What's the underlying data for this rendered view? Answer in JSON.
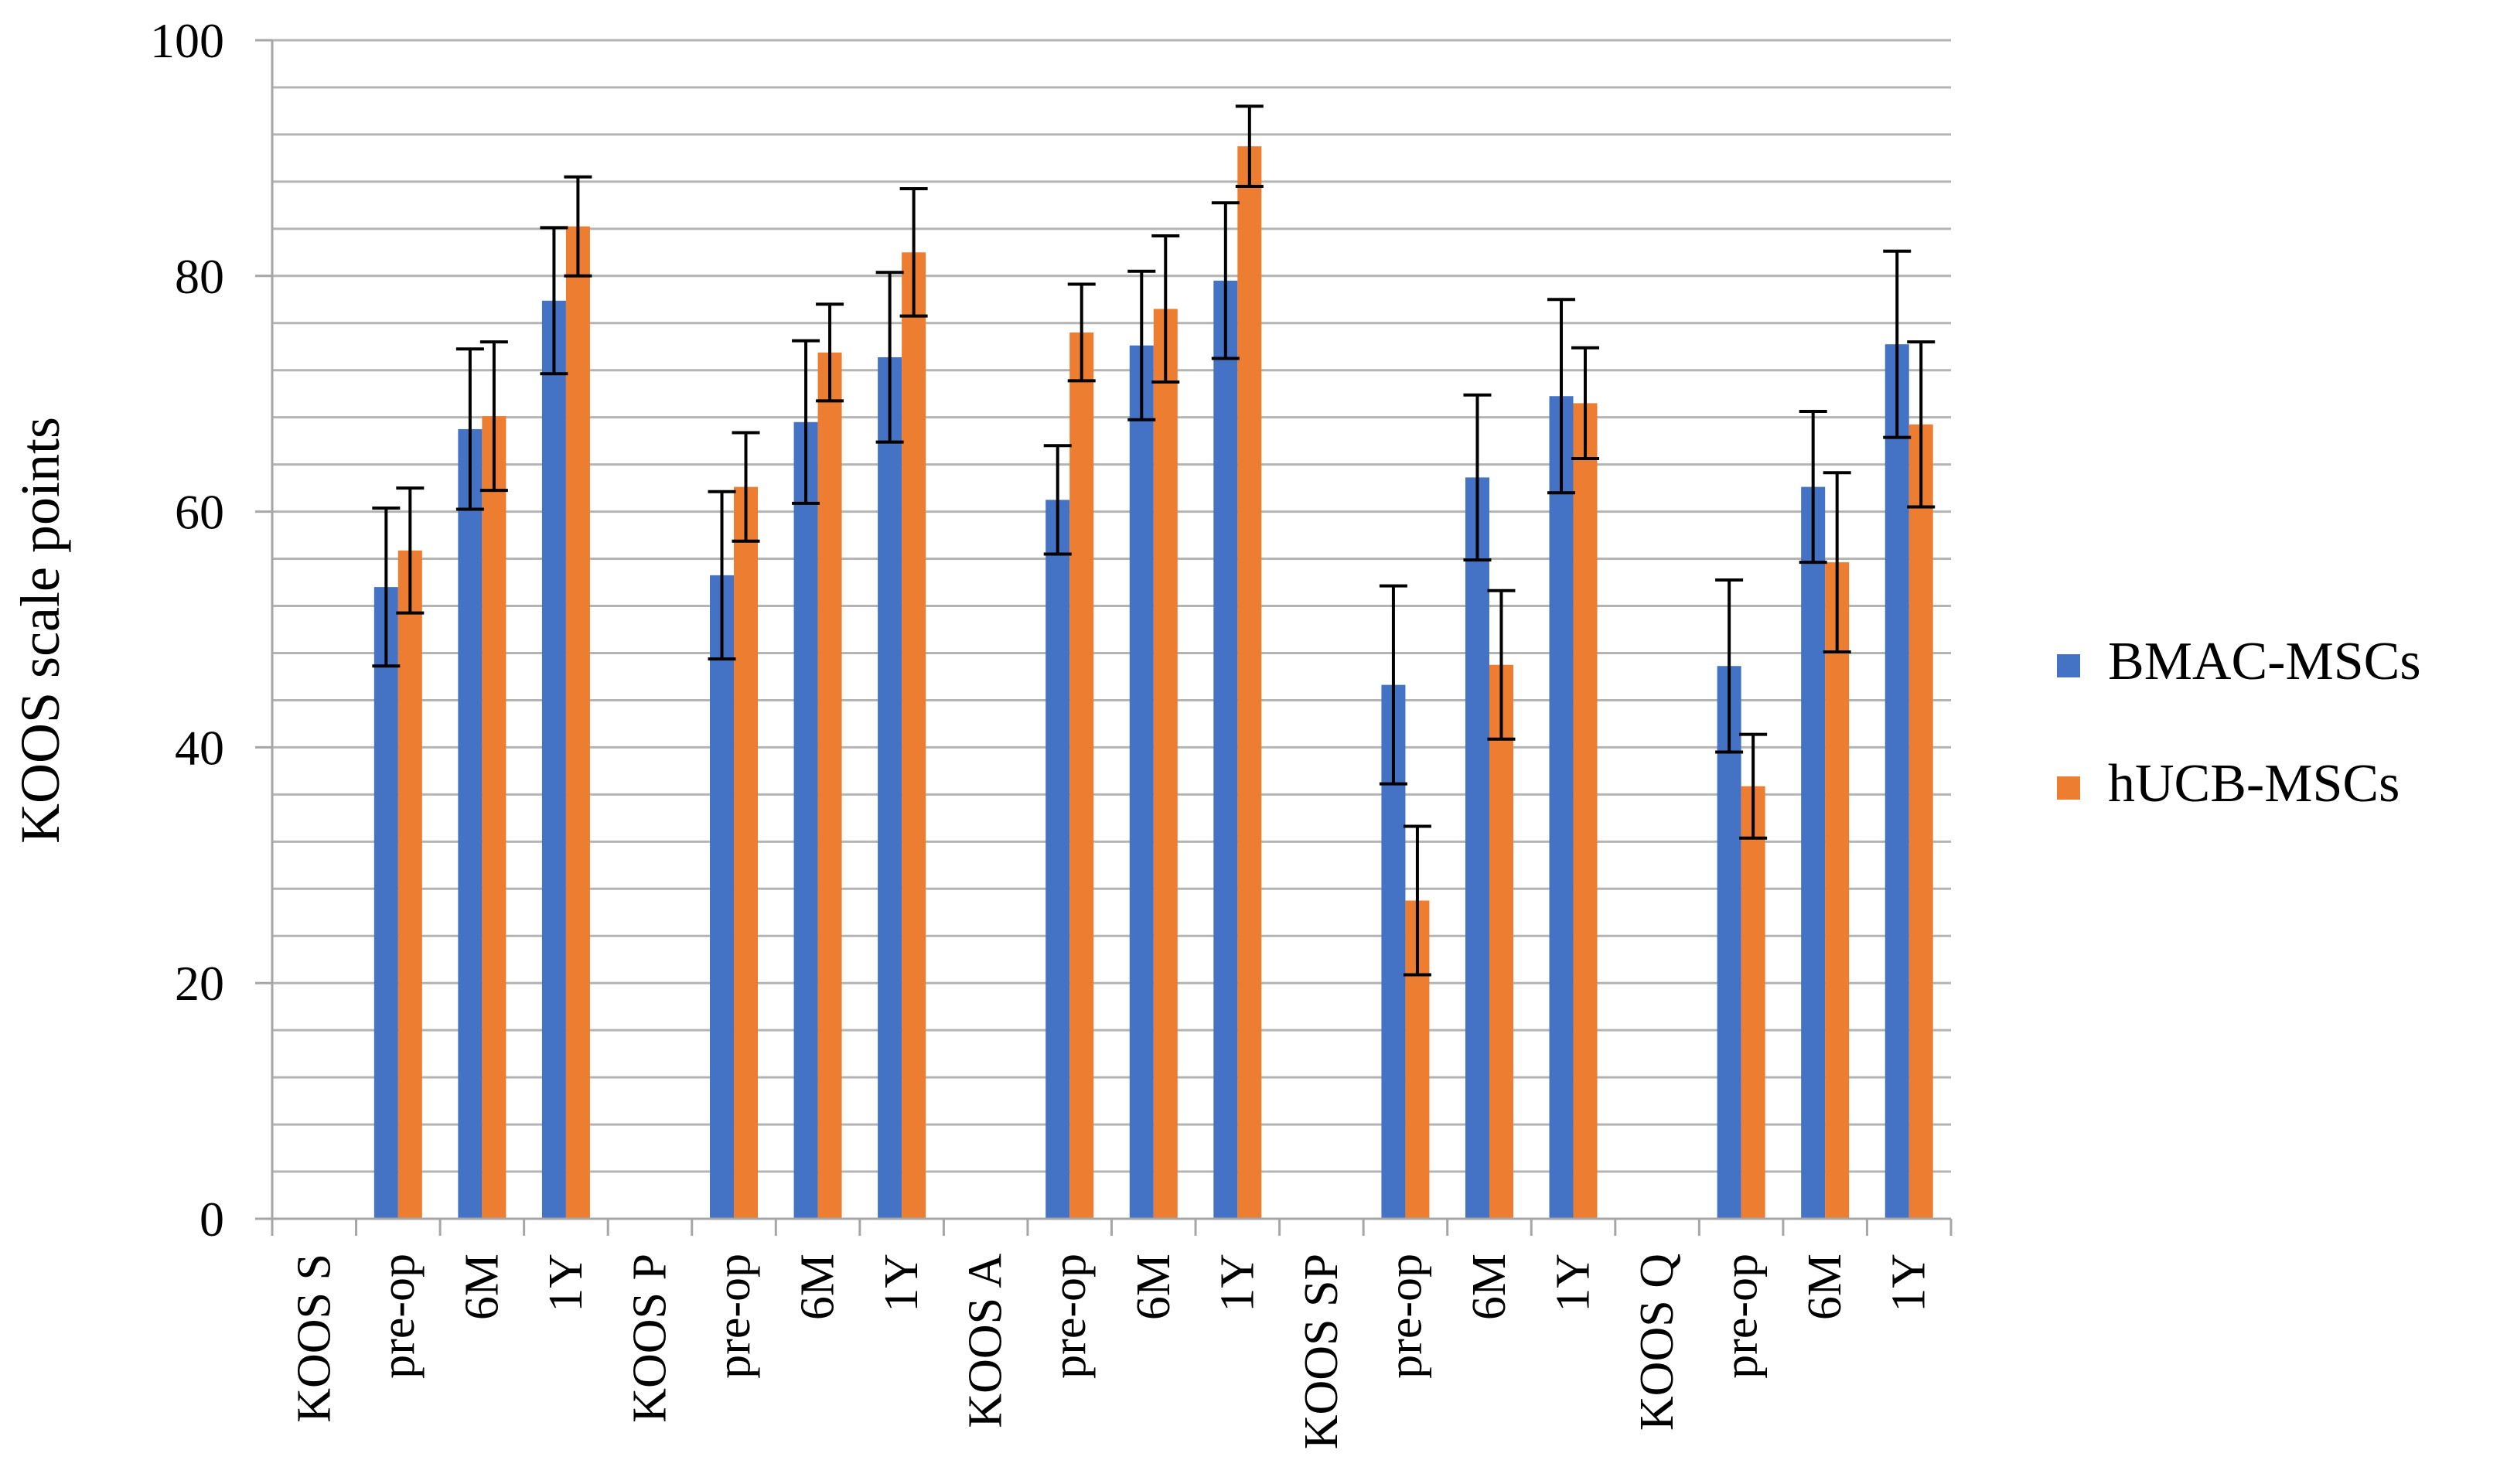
{
  "chart_data": {
    "type": "bar",
    "title": "",
    "xlabel": "",
    "ylabel": "KOOS scale points",
    "ylim": [
      0,
      100
    ],
    "yticks": [
      0,
      20,
      40,
      60,
      80,
      100
    ],
    "grid_minor_step": 4,
    "legend_position": "right",
    "categories": [
      "KOOS S",
      "pre-op",
      "6M",
      "1Y",
      "KOOS P",
      "pre-op",
      "6M",
      "1Y",
      "KOOS A",
      "pre-op",
      "6M",
      "1Y",
      "KOOS SP",
      "pre-op",
      "6M",
      "1Y",
      "KOOS Q",
      "pre-op",
      "6M",
      "1Y"
    ],
    "series": [
      {
        "name": "BMAC-MSCs",
        "color": "#4472C4",
        "values": [
          null,
          53.6,
          67.0,
          77.9,
          null,
          54.6,
          67.6,
          73.1,
          null,
          61.0,
          74.1,
          79.6,
          null,
          45.3,
          62.9,
          69.8,
          null,
          46.9,
          62.1,
          74.2
        ],
        "errors": [
          null,
          6.7,
          6.8,
          6.2,
          null,
          7.1,
          6.9,
          7.2,
          null,
          4.6,
          6.3,
          6.6,
          null,
          8.4,
          7.0,
          8.2,
          null,
          7.3,
          6.4,
          7.9
        ]
      },
      {
        "name": "hUCB-MSCs",
        "color": "#ED7D31",
        "values": [
          null,
          56.7,
          68.1,
          84.2,
          null,
          62.1,
          73.5,
          82.0,
          null,
          75.2,
          77.2,
          91.0,
          null,
          27.0,
          47.0,
          69.2,
          null,
          36.7,
          55.7,
          67.4
        ],
        "errors": [
          null,
          5.3,
          6.3,
          4.2,
          null,
          4.6,
          4.1,
          5.4,
          null,
          4.1,
          6.2,
          3.4,
          null,
          6.3,
          6.3,
          4.7,
          null,
          4.4,
          7.6,
          7.0
        ]
      }
    ]
  }
}
